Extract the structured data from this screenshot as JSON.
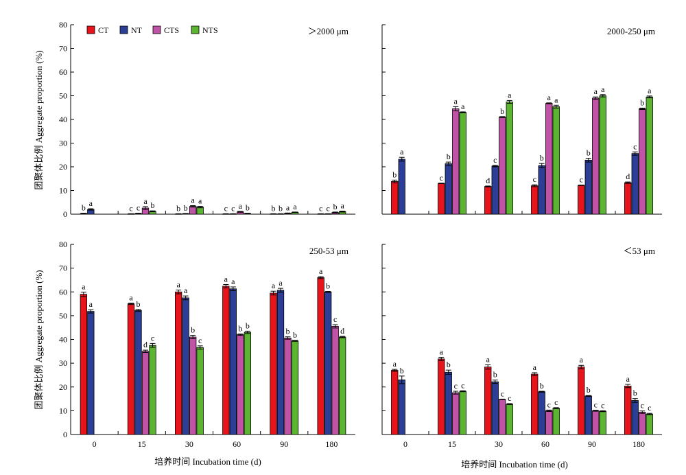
{
  "y_axis_label": "团聚体比例 Aggregate proportion (%)",
  "x_axis_label": "培养时间 Incubation time (d)",
  "legend": [
    {
      "name": "CT",
      "color": "#e8141c"
    },
    {
      "name": "NT",
      "color": "#2c3e95"
    },
    {
      "name": "CTS",
      "color": "#c153a6"
    },
    {
      "name": "NTS",
      "color": "#5cb531"
    }
  ],
  "chart_data": [
    {
      "type": "bar",
      "panel_label": "＞2000 μm",
      "categories": [
        "0",
        "15",
        "30",
        "60",
        "90",
        "180"
      ],
      "ylim": [
        0,
        80
      ],
      "yticks": [
        0,
        10,
        20,
        30,
        40,
        50,
        60,
        70,
        80
      ],
      "series": [
        {
          "name": "CT",
          "values": [
            0.3,
            0.1,
            0.1,
            0.1,
            0.1,
            0.1
          ],
          "errors": [
            0.1,
            0.1,
            0.1,
            0.1,
            0.1,
            0.1
          ],
          "letters": [
            "b",
            "c",
            "b",
            "c",
            "b",
            "c"
          ]
        },
        {
          "name": "NT",
          "values": [
            2.0,
            0.3,
            0.2,
            0.1,
            0.1,
            0.1
          ],
          "errors": [
            0.3,
            0.1,
            0.1,
            0.1,
            0.1,
            0.1
          ],
          "letters": [
            "a",
            "c",
            "b",
            "c",
            "b",
            "c"
          ]
        },
        {
          "name": "CTS",
          "values": [
            null,
            2.6,
            3.3,
            1.0,
            0.4,
            0.7
          ],
          "errors": [
            null,
            0.6,
            0.3,
            0.2,
            0.1,
            0.2
          ],
          "letters": [
            "",
            "a",
            "a",
            "a",
            "a",
            "b"
          ]
        },
        {
          "name": "NTS",
          "values": [
            null,
            1.2,
            3.0,
            0.3,
            0.8,
            1.1
          ],
          "errors": [
            null,
            0.2,
            0.3,
            0.1,
            0.1,
            0.2
          ],
          "letters": [
            "",
            "b",
            "a",
            "b",
            "a",
            "a"
          ]
        }
      ]
    },
    {
      "type": "bar",
      "panel_label": "2000-250 μm",
      "categories": [
        "0",
        "15",
        "30",
        "60",
        "90",
        "180"
      ],
      "ylim": [
        0,
        80
      ],
      "yticks": [
        0,
        10,
        20,
        30,
        40,
        50,
        60,
        70,
        80
      ],
      "series": [
        {
          "name": "CT",
          "values": [
            13.8,
            13.0,
            11.7,
            12.0,
            12.2,
            13.3
          ],
          "errors": [
            0.6,
            0.1,
            0.2,
            0.4,
            0.1,
            0.3
          ],
          "letters": [
            "b",
            "c",
            "d",
            "c",
            "c",
            "d"
          ]
        },
        {
          "name": "NT",
          "values": [
            23.2,
            21.3,
            20.3,
            20.5,
            22.8,
            25.6
          ],
          "errors": [
            0.8,
            0.7,
            0.3,
            0.9,
            0.8,
            0.7
          ],
          "letters": [
            "a",
            "b",
            "c",
            "b",
            "b",
            "c"
          ]
        },
        {
          "name": "CTS",
          "values": [
            null,
            44.5,
            41.0,
            46.8,
            49.0,
            44.5
          ],
          "errors": [
            null,
            0.9,
            0.2,
            0.2,
            0.5,
            0.3
          ],
          "letters": [
            "",
            "a",
            "b",
            "a",
            "a",
            "b"
          ]
        },
        {
          "name": "NTS",
          "values": [
            null,
            43.0,
            47.4,
            45.4,
            50.0,
            49.5
          ],
          "errors": [
            null,
            0.2,
            0.6,
            0.6,
            0.5,
            0.4
          ],
          "letters": [
            "",
            "a",
            "a",
            "a",
            "a",
            "a"
          ]
        }
      ]
    },
    {
      "type": "bar",
      "panel_label": "250-53 μm",
      "categories": [
        "0",
        "15",
        "30",
        "60",
        "90",
        "180"
      ],
      "ylim": [
        0,
        80
      ],
      "yticks": [
        0,
        10,
        20,
        30,
        40,
        50,
        60,
        70,
        80
      ],
      "series": [
        {
          "name": "CT",
          "values": [
            59.0,
            55.0,
            60.0,
            62.4,
            59.5,
            66.0
          ],
          "errors": [
            0.9,
            0.3,
            0.8,
            0.7,
            0.8,
            0.4
          ],
          "letters": [
            "a",
            "a",
            "a",
            "a",
            "a",
            "a"
          ]
        },
        {
          "name": "NT",
          "values": [
            51.8,
            52.2,
            57.5,
            61.3,
            60.7,
            60.0
          ],
          "errors": [
            0.7,
            0.4,
            0.8,
            0.8,
            0.8,
            0.2
          ],
          "letters": [
            "a",
            "b",
            "a",
            "a",
            "a",
            "b"
          ]
        },
        {
          "name": "CTS",
          "values": [
            null,
            35.0,
            41.0,
            42.0,
            40.6,
            45.5
          ],
          "errors": [
            null,
            0.5,
            0.7,
            0.3,
            0.5,
            0.7
          ],
          "letters": [
            "",
            "d",
            "b",
            "b",
            "b",
            "c"
          ]
        },
        {
          "name": "NTS",
          "values": [
            null,
            37.5,
            36.6,
            43.0,
            39.4,
            41.0
          ],
          "errors": [
            null,
            0.8,
            0.7,
            0.5,
            0.2,
            0.3
          ],
          "letters": [
            "",
            "c",
            "c",
            "b",
            "b",
            "d"
          ]
        }
      ]
    },
    {
      "type": "bar",
      "panel_label": "＜53 μm",
      "categories": [
        "0",
        "15",
        "30",
        "60",
        "90",
        "180"
      ],
      "ylim": [
        0,
        80
      ],
      "yticks": [
        0,
        10,
        20,
        30,
        40,
        50,
        60,
        70,
        80
      ],
      "series": [
        {
          "name": "CT",
          "values": [
            27.0,
            31.8,
            28.4,
            25.4,
            28.4,
            20.4
          ],
          "errors": [
            0.4,
            0.7,
            0.9,
            0.6,
            0.7,
            0.7
          ],
          "letters": [
            "a",
            "a",
            "a",
            "a",
            "a",
            "a"
          ]
        },
        {
          "name": "NT",
          "values": [
            23.0,
            26.2,
            22.2,
            18.0,
            16.2,
            14.3
          ],
          "errors": [
            1.6,
            0.9,
            0.7,
            0.2,
            0.2,
            0.8
          ],
          "letters": [
            "b",
            "b",
            "b",
            "b",
            "b",
            "b"
          ]
        },
        {
          "name": "CTS",
          "values": [
            null,
            17.6,
            14.8,
            10.0,
            10.0,
            9.4
          ],
          "errors": [
            null,
            0.6,
            0.1,
            0.3,
            0.2,
            0.5
          ],
          "letters": [
            "",
            "c",
            "c",
            "c",
            "c",
            "c"
          ]
        },
        {
          "name": "NTS",
          "values": [
            null,
            18.2,
            12.8,
            11.1,
            9.8,
            8.6
          ],
          "errors": [
            null,
            0.2,
            0.2,
            0.2,
            0.2,
            0.3
          ],
          "letters": [
            "",
            "c",
            "c",
            "c",
            "c",
            "c"
          ]
        }
      ]
    }
  ]
}
